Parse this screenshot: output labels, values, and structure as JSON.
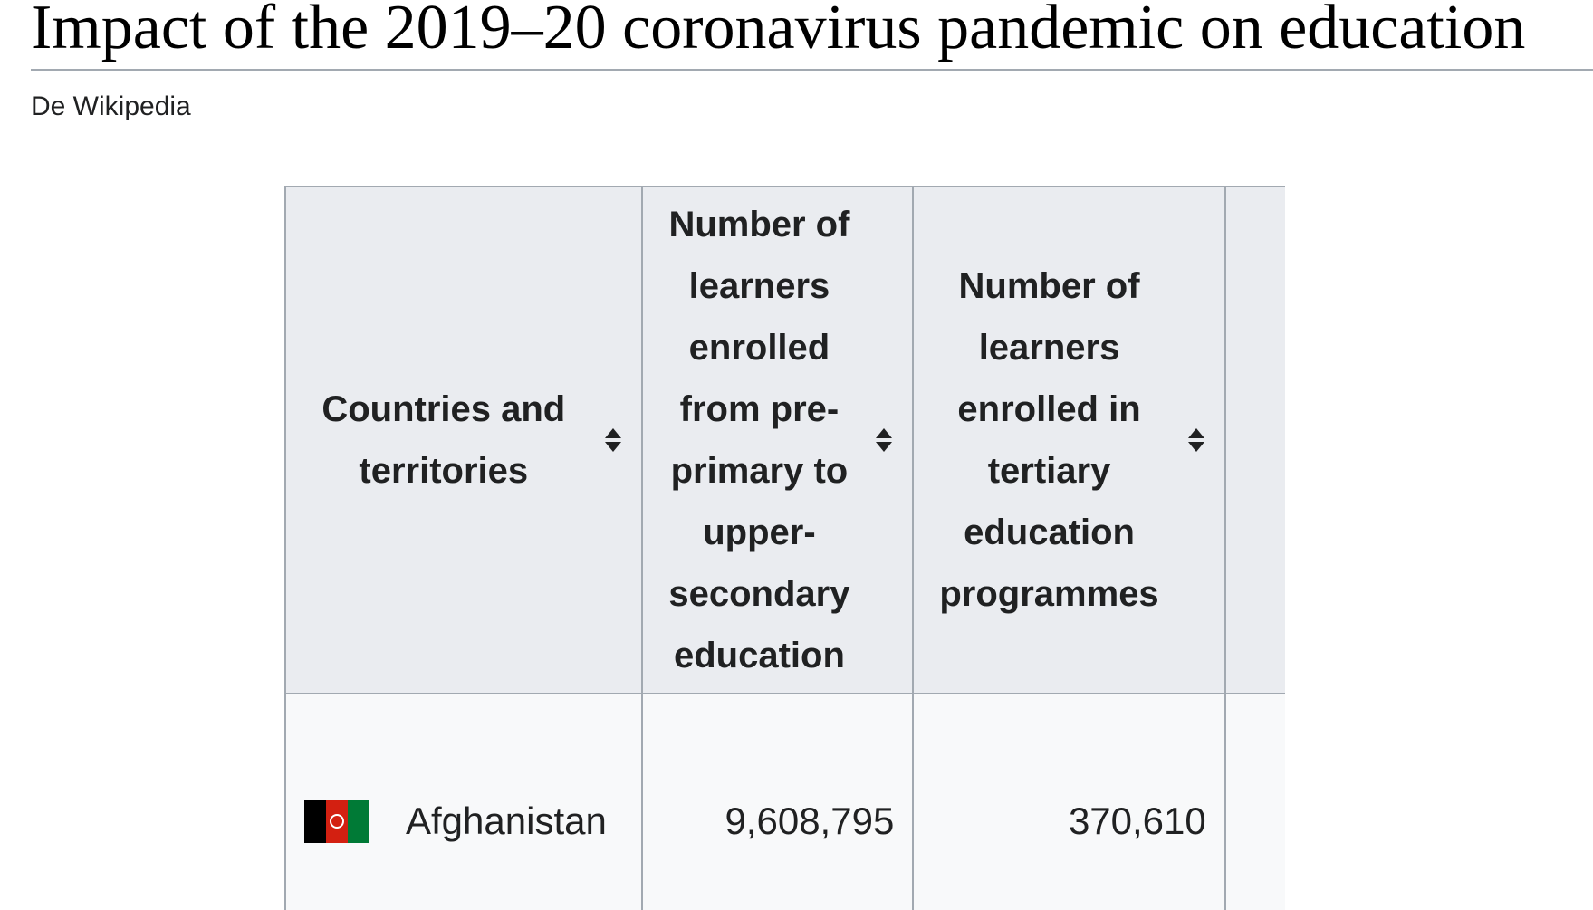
{
  "page": {
    "title": "Impact of the 2019–20 coronavirus pandemic on education",
    "site_sub": "De Wikipedia"
  },
  "table": {
    "headers": [
      {
        "label": "Countries and territories",
        "sortable": true
      },
      {
        "label": "Number of learners enrolled from pre-primary to upper-secondary education",
        "sortable": true
      },
      {
        "label": "Number of learners enrolled in tertiary education programmes",
        "sortable": true
      }
    ],
    "rows": [
      {
        "country": "Afghanistan",
        "flag_icon": "afghanistan-flag-icon",
        "primary_to_upper_secondary": "9,608,795",
        "tertiary": "370,610"
      }
    ]
  },
  "colors": {
    "header_bg": "#eaecf0",
    "cell_bg": "#f8f9fa",
    "border": "#a2a9b1",
    "text": "#202122"
  }
}
